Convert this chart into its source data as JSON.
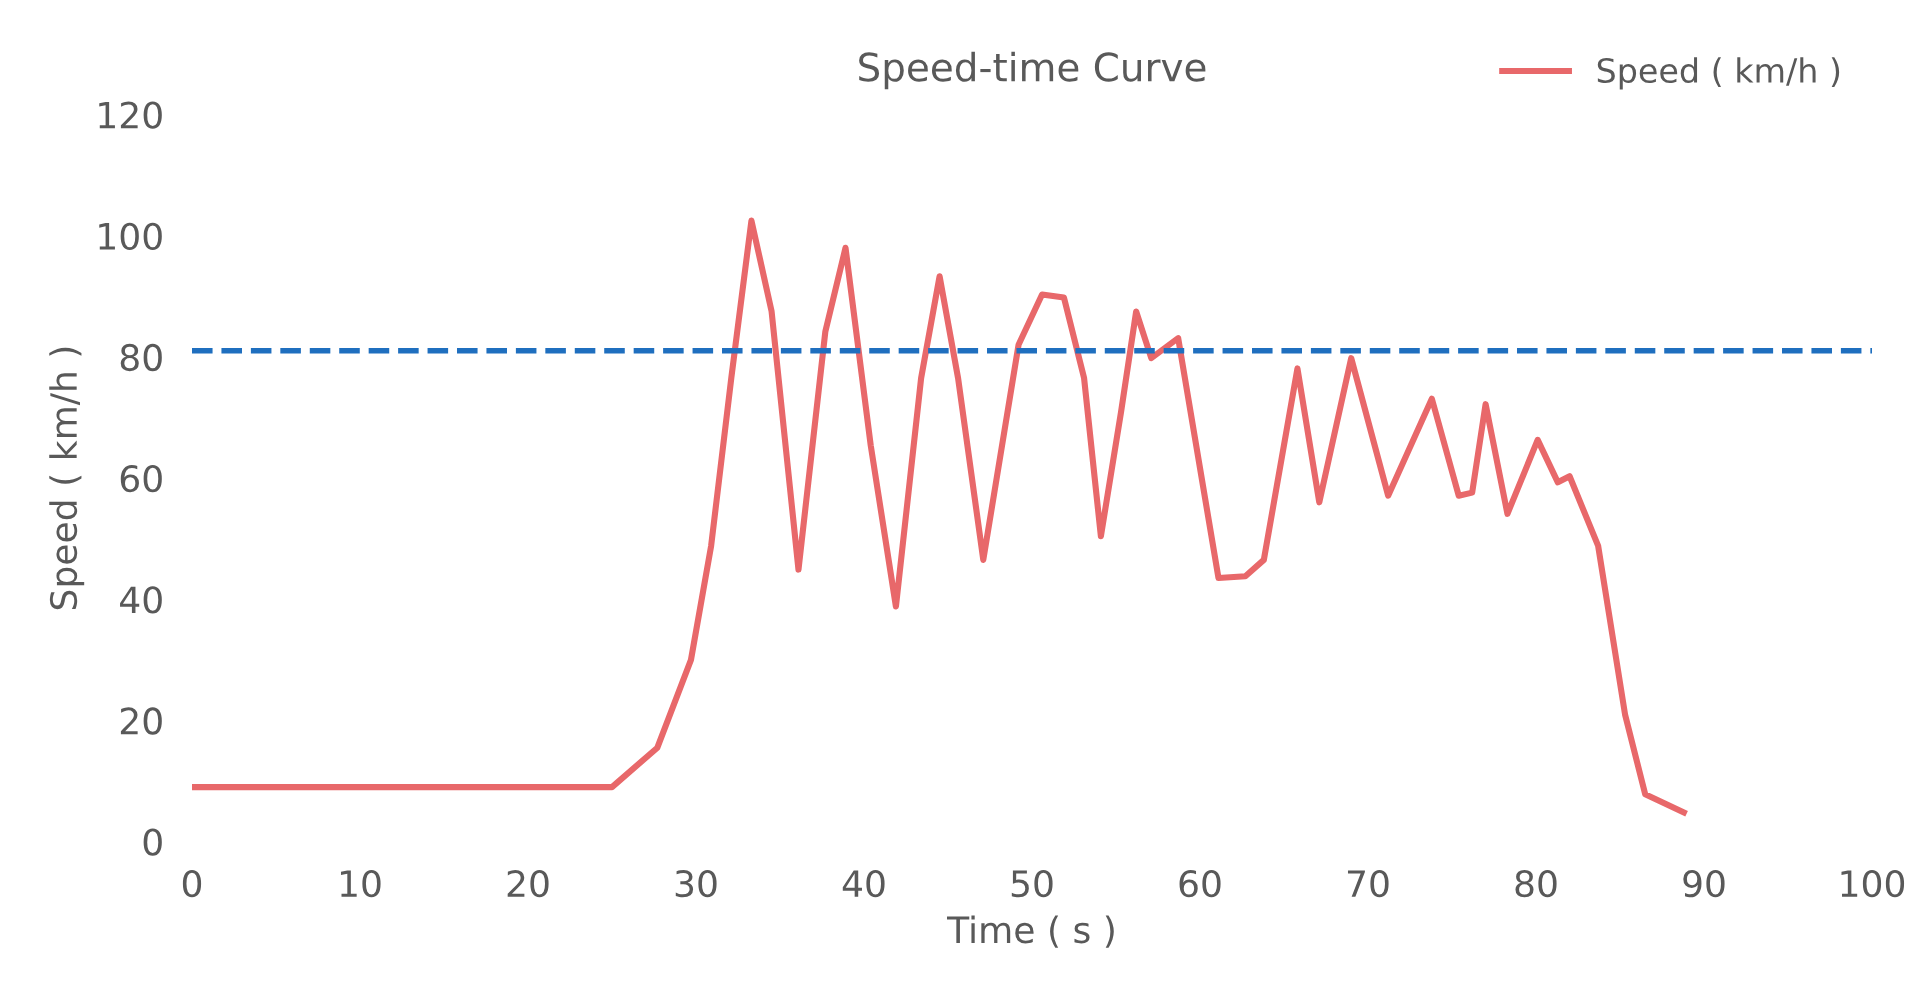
{
  "chart_data": {
    "type": "line",
    "title": "Speed-time Curve",
    "xlabel": "Time ( s )",
    "ylabel": "Speed ( km/h )",
    "xlim": [
      0,
      100
    ],
    "xticks": [
      0,
      10,
      20,
      30,
      40,
      50,
      60,
      70,
      80,
      90,
      100
    ],
    "ylim": [
      0,
      120
    ],
    "yticks": [
      0,
      20,
      40,
      60,
      80,
      100,
      120
    ],
    "grid": false,
    "legend": "top right",
    "marker": "none",
    "line_style": "solid",
    "series": [
      {
        "name": "Speed ( km/h )",
        "color": "#e8686a",
        "x": [
          0,
          25,
          27.7,
          29.7,
          30.9,
          32.1,
          33.3,
          34.5,
          36.1,
          37.7,
          38.9,
          40.4,
          41.9,
          43.4,
          44.5,
          45.6,
          47.1,
          49.2,
          50.6,
          51.9,
          53.1,
          54.1,
          55.3,
          56.2,
          57.1,
          58.7,
          61.1,
          62.7,
          63.8,
          65.8,
          67.1,
          69,
          71.2,
          73.8,
          75.4,
          76.2,
          77,
          78.3,
          80.1,
          81.3,
          82,
          83.7,
          85.3,
          86.5,
          88.8
        ],
        "values": [
          9,
          9,
          15.5,
          30,
          48.8,
          76.5,
          102.5,
          87.5,
          44.9,
          84.2,
          98,
          65.4,
          38.8,
          76.5,
          93.3,
          76.5,
          46.5,
          82,
          90.3,
          89.8,
          76.5,
          50.4,
          70.9,
          87.5,
          79.8,
          83.1,
          43.5,
          43.8,
          46.5,
          78.1,
          56,
          79.8,
          57.1,
          73.1,
          57.1,
          57.6,
          72.2,
          54.1,
          66.3,
          59.3,
          60.3,
          48.8,
          21,
          7.8,
          4.8
        ]
      }
    ],
    "ref_lines": [
      {
        "axis": "y",
        "value": 81,
        "label": null,
        "color": "#1f6fbf",
        "line_style": "dashed"
      }
    ]
  }
}
